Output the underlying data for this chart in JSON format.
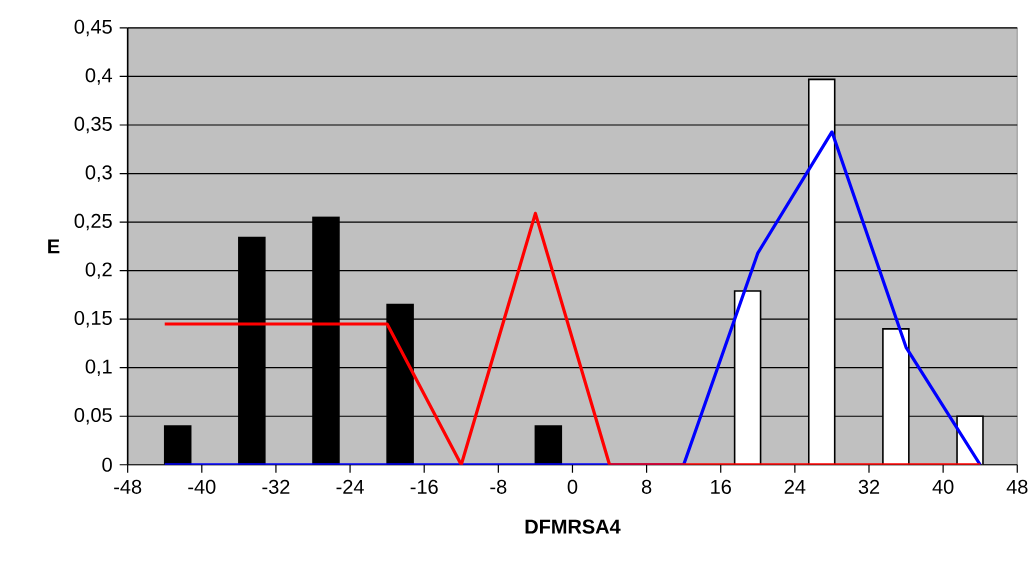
{
  "chart_data": {
    "type": "bar",
    "xlabel": "DFMRSA4",
    "ylabel": "E",
    "xlim": [
      -48,
      48
    ],
    "xticks": [
      -48,
      -40,
      -32,
      -24,
      -16,
      -8,
      0,
      8,
      16,
      24,
      32,
      40,
      48
    ],
    "ylim": [
      0,
      0.45
    ],
    "yticks": [
      0,
      {
        "value": 0.05,
        "label": "0,05"
      },
      {
        "value": 0.1,
        "label": "0,1"
      },
      {
        "value": 0.15,
        "label": "0,15"
      },
      {
        "value": 0.2,
        "label": "0,2"
      },
      {
        "value": 0.25,
        "label": "0,25"
      },
      {
        "value": 0.3,
        "label": "0,3"
      },
      {
        "value": 0.35,
        "label": "0,35"
      },
      {
        "value": 0.4,
        "label": "0,4"
      },
      {
        "value": 0.45,
        "label": "0,45"
      }
    ],
    "grid": "y",
    "series": [
      {
        "color": "#000000",
        "x": [
          -42.6,
          -34.6,
          -26.6,
          -18.6,
          -2.6
        ],
        "values": [
          0.04,
          0.234,
          0.255,
          0.165,
          0.04
        ]
      },
      {
        "color": "#ffffff",
        "x": [
          18.9,
          26.9,
          34.9,
          42.9
        ],
        "values": [
          0.179,
          0.397,
          0.14,
          0.05
        ]
      },
      {
        "type": "line",
        "color": "#0000ff",
        "x": [
          -44,
          -36,
          -28,
          -20,
          -12,
          -4,
          4,
          12,
          20,
          28,
          36,
          44
        ],
        "values": [
          0,
          0,
          0,
          0,
          0,
          0,
          0,
          0,
          0.218,
          0.343,
          0.121,
          0
        ]
      },
      {
        "type": "line",
        "color": "#ff0000",
        "x": [
          -44,
          -36,
          -28,
          -20,
          -12,
          -4,
          4,
          12,
          20,
          28,
          36,
          44
        ],
        "values": [
          0.145,
          0.145,
          0.145,
          0.145,
          0,
          0.259,
          0,
          0,
          0,
          0,
          0,
          0
        ]
      }
    ]
  }
}
